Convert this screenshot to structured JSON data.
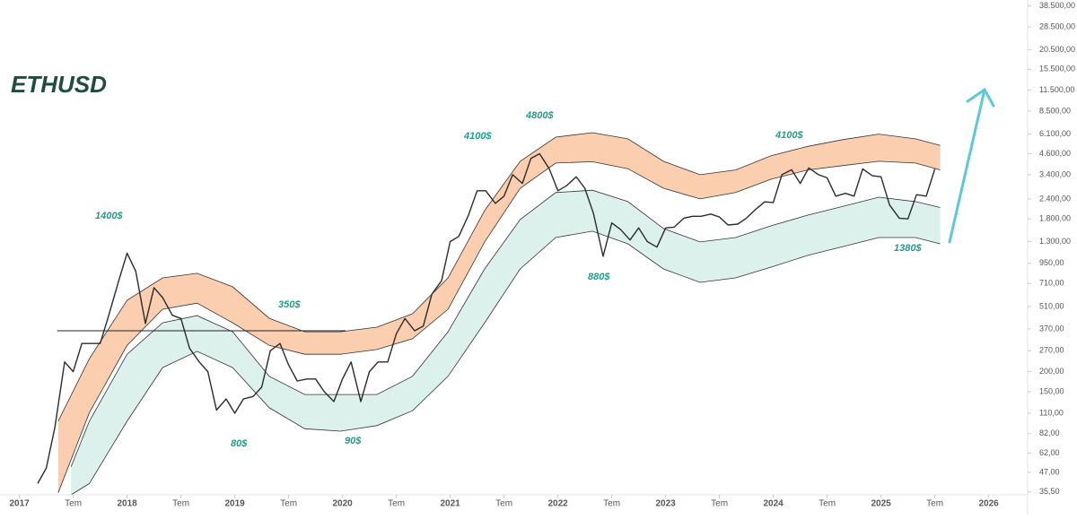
{
  "chart_data": {
    "type": "line",
    "title": "ETHUSD",
    "log_scale": true,
    "grid": false,
    "xlim": [
      2016.82,
      2026.32
    ],
    "ylim": [
      34,
      42000
    ],
    "xticks": [
      2017,
      {
        "value": 2017.5,
        "label": "Tem"
      },
      2018,
      {
        "value": 2018.5,
        "label": "Tem"
      },
      2019,
      {
        "value": 2019.5,
        "label": "Tem"
      },
      2020,
      {
        "value": 2020.5,
        "label": "Tem"
      },
      2021,
      {
        "value": 2021.5,
        "label": "Tem"
      },
      2022,
      {
        "value": 2022.5,
        "label": "Tem"
      },
      2023,
      {
        "value": 2023.5,
        "label": "Tem"
      },
      2024,
      {
        "value": 2024.5,
        "label": "Tem"
      },
      2025,
      {
        "value": 2025.5,
        "label": "Tem"
      },
      2026
    ],
    "yticks": [
      {
        "value": 38500,
        "label": "38.500,00"
      },
      {
        "value": 28500,
        "label": "28.500,00"
      },
      {
        "value": 20500,
        "label": "20.500,00"
      },
      {
        "value": 15500,
        "label": "15.500,00"
      },
      {
        "value": 11500,
        "label": "11.500,00"
      },
      {
        "value": 8500,
        "label": "8.500,00"
      },
      {
        "value": 6100,
        "label": "6.100,00"
      },
      {
        "value": 4600,
        "label": "4.600,00"
      },
      {
        "value": 3400,
        "label": "3.400,00"
      },
      {
        "value": 2400,
        "label": "2.400,00"
      },
      {
        "value": 1800,
        "label": "1.800,00"
      },
      {
        "value": 1300,
        "label": "1.300,00"
      },
      {
        "value": 950,
        "label": "950,00"
      },
      {
        "value": 710,
        "label": "710,00"
      },
      {
        "value": 510,
        "label": "510,00"
      },
      {
        "value": 370,
        "label": "370,00"
      },
      {
        "value": 270,
        "label": "270,00"
      },
      {
        "value": 200,
        "label": "200,00"
      },
      {
        "value": 150,
        "label": "150,00"
      },
      {
        "value": 110,
        "label": "110,00"
      },
      {
        "value": 82,
        "label": "82,00"
      },
      {
        "value": 62,
        "label": "62,00"
      },
      {
        "value": 47,
        "label": "47,00"
      },
      {
        "value": 35.5,
        "label": "35,50"
      }
    ],
    "price": {
      "color": "#2b2b2b",
      "x": [
        2017.17,
        2017.25,
        2017.33,
        2017.42,
        2017.5,
        2017.58,
        2017.67,
        2017.75,
        2017.83,
        2017.92,
        2018.0,
        2018.08,
        2018.17,
        2018.25,
        2018.33,
        2018.42,
        2018.5,
        2018.58,
        2018.67,
        2018.75,
        2018.83,
        2018.92,
        2019.0,
        2019.08,
        2019.17,
        2019.25,
        2019.33,
        2019.42,
        2019.5,
        2019.58,
        2019.67,
        2019.75,
        2019.83,
        2019.92,
        2020.0,
        2020.08,
        2020.17,
        2020.25,
        2020.33,
        2020.42,
        2020.5,
        2020.58,
        2020.67,
        2020.75,
        2020.83,
        2020.92,
        2021.0,
        2021.08,
        2021.17,
        2021.25,
        2021.33,
        2021.42,
        2021.5,
        2021.58,
        2021.67,
        2021.75,
        2021.83,
        2021.92,
        2022.0,
        2022.08,
        2022.17,
        2022.25,
        2022.33,
        2022.42,
        2022.5,
        2022.58,
        2022.67,
        2022.75,
        2022.83,
        2022.92,
        2023.0,
        2023.08,
        2023.17,
        2023.25,
        2023.33,
        2023.42,
        2023.5,
        2023.58,
        2023.67,
        2023.75,
        2023.83,
        2023.92,
        2024.0,
        2024.08,
        2024.17,
        2024.25,
        2024.33,
        2024.42,
        2024.5,
        2024.58,
        2024.67,
        2024.75,
        2024.83,
        2024.92,
        2025.0,
        2025.08,
        2025.17,
        2025.25,
        2025.33,
        2025.42,
        2025.5
      ],
      "values": [
        40,
        50,
        90,
        230,
        200,
        300,
        300,
        300,
        450,
        730,
        1100,
        850,
        400,
        670,
        580,
        450,
        430,
        280,
        230,
        200,
        115,
        135,
        110,
        135,
        140,
        160,
        270,
        300,
        220,
        175,
        180,
        180,
        150,
        130,
        180,
        230,
        130,
        200,
        230,
        230,
        345,
        430,
        360,
        385,
        610,
        740,
        1300,
        1400,
        1900,
        2700,
        2700,
        2250,
        2500,
        3400,
        3000,
        4300,
        4600,
        3700,
        2700,
        2900,
        3300,
        2800,
        1950,
        1050,
        1700,
        1550,
        1330,
        1580,
        1300,
        1200,
        1580,
        1600,
        1820,
        1870,
        1870,
        1930,
        1850,
        1650,
        1670,
        1820,
        2050,
        2300,
        2280,
        3400,
        3650,
        3000,
        3750,
        3400,
        3250,
        2500,
        2600,
        2500,
        3700,
        3350,
        3300,
        2200,
        1820,
        1800,
        2550,
        2500,
        3700
      ]
    },
    "bands": [
      {
        "color": "#f9c9a6",
        "x": [
          2017.36,
          2017.65,
          2018.0,
          2018.33,
          2018.65,
          2018.98,
          2019.32,
          2019.65,
          2019.98,
          2020.32,
          2020.65,
          2020.98,
          2021.32,
          2021.65,
          2021.98,
          2022.32,
          2022.65,
          2022.98,
          2023.32,
          2023.65,
          2023.98,
          2024.32,
          2024.65,
          2024.98,
          2025.32,
          2025.55
        ],
        "upper": [
          98,
          241,
          559,
          771,
          823,
          678,
          431,
          355,
          355,
          379,
          460,
          771,
          2030,
          4126,
          5840,
          6230,
          5700,
          4126,
          3400,
          3640,
          4470,
          5110,
          5640,
          6100,
          5700,
          5180
        ],
        "lower": [
          35,
          111,
          292,
          491,
          536,
          404,
          292,
          257,
          257,
          275,
          321,
          491,
          1292,
          2800,
          4020,
          4100,
          3710,
          2800,
          2400,
          2630,
          3190,
          3640,
          3880,
          4126,
          4020,
          3640
        ]
      },
      {
        "color": "#d8efe9",
        "x": [
          2017.48,
          2017.65,
          2018.0,
          2018.33,
          2018.65,
          2018.98,
          2019.32,
          2019.65,
          2019.98,
          2020.32,
          2020.65,
          2020.98,
          2021.32,
          2021.65,
          2021.98,
          2022.32,
          2022.65,
          2022.98,
          2023.32,
          2023.65,
          2023.98,
          2024.32,
          2024.65,
          2024.98,
          2025.32,
          2025.55
        ],
        "upper": [
          51,
          98,
          257,
          404,
          448,
          355,
          187,
          144,
          144,
          144,
          187,
          355,
          877,
          1785,
          2630,
          2720,
          2310,
          1568,
          1292,
          1378,
          1630,
          1900,
          2160,
          2460,
          2310,
          2120
        ],
        "lower": [
          34,
          40,
          98,
          212,
          268,
          212,
          119,
          88,
          85,
          92,
          114,
          187,
          404,
          877,
          1378,
          1510,
          1258,
          877,
          723,
          771,
          900,
          1065,
          1210,
          1378,
          1378,
          1258
        ]
      }
    ],
    "level": {
      "value": 360,
      "x": [
        2017.35,
        2020.03
      ]
    },
    "annotations": [
      "1400$",
      "350$",
      "80$",
      "90$",
      "4100$",
      "4800$",
      "880$",
      "4100$",
      "1380$"
    ]
  }
}
